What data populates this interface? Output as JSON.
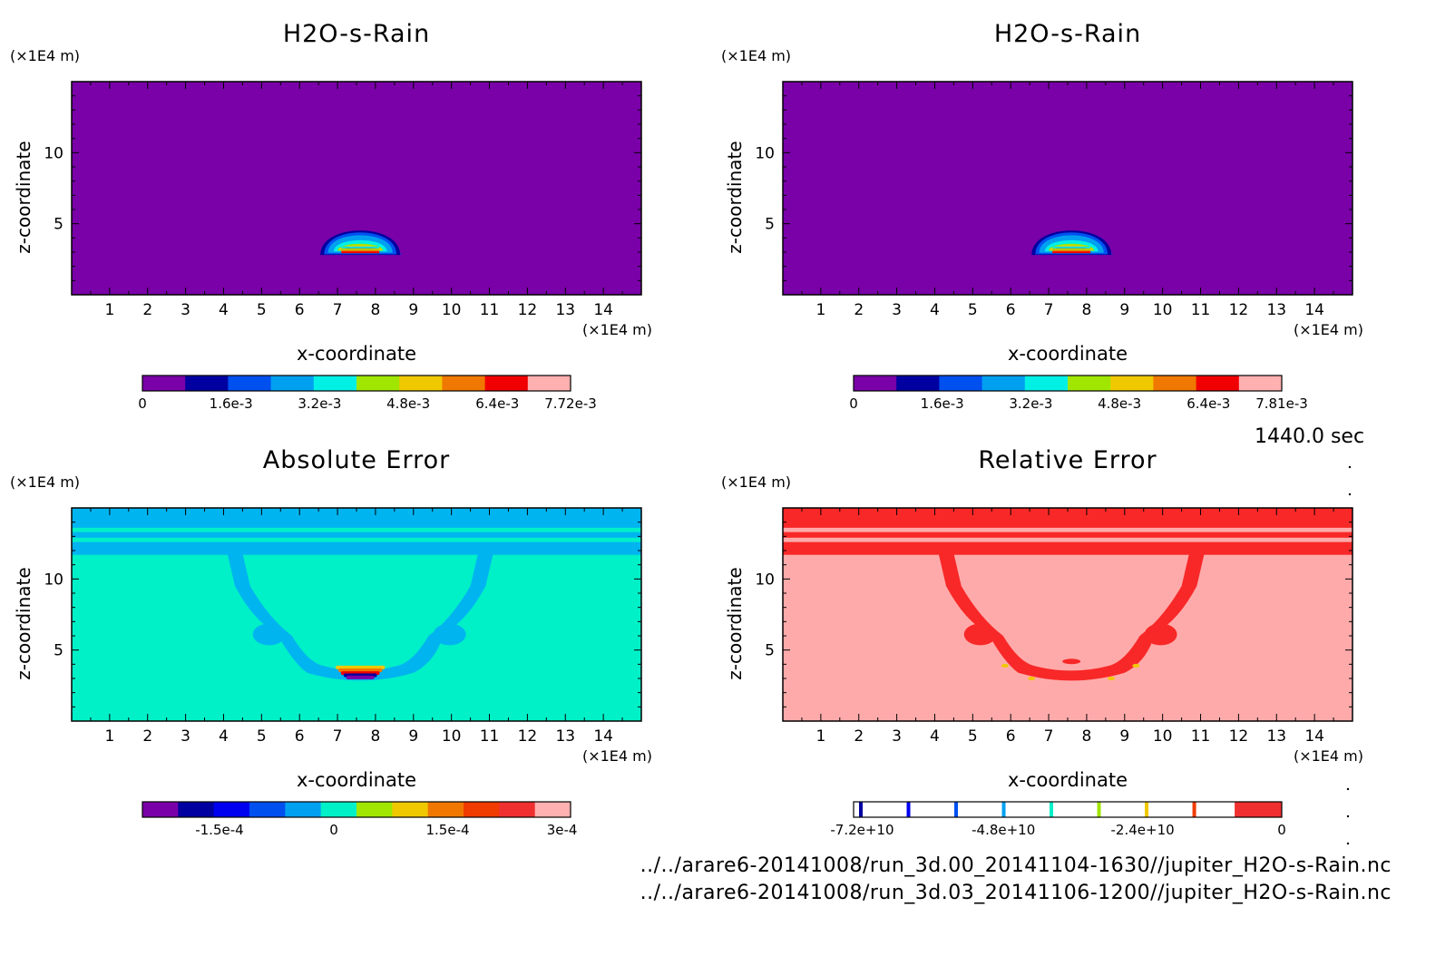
{
  "time_label": "1440.0 sec",
  "files": [
    "../../arare6-20141008/run_3d.00_20141104-1630//jupiter_H2O-s-Rain.nc",
    "../../arare6-20141008/run_3d.03_20141106-1200//jupiter_H2O-s-Rain.nc"
  ],
  "colors": {
    "purple": "#7a00a8",
    "navy": "#0000a0",
    "blue": "#0000f0",
    "mid_blue": "#0050f0",
    "sky": "#00a0f0",
    "cyan": "#00f0e6",
    "lime": "#a0e600",
    "yellow": "#f0c800",
    "orange": "#f07800",
    "red_orange": "#f03c00",
    "red": "#f00000",
    "bright_red": "#f03030",
    "pink": "#ffb0b0",
    "abs_bg": "#00f0c8",
    "abs_bands": "#00b4f0",
    "rel_bg": "#ffaaaa",
    "rel_bands": "#f82828"
  },
  "chart_data": [
    {
      "type": "heatmap",
      "panel": "top-left",
      "title": "H2O-s-Rain",
      "xlabel": "x-coordinate",
      "ylabel": "z-coordinate",
      "x_unit": "(×1E4 m)",
      "y_unit": "(×1E4 m)",
      "xlim": [
        0,
        15
      ],
      "ylim": [
        0,
        15
      ],
      "x_ticks": [
        1,
        2,
        3,
        4,
        5,
        6,
        7,
        8,
        9,
        10,
        11,
        12,
        13,
        14
      ],
      "y_ticks": [
        5,
        10
      ],
      "background": "#7a00a8",
      "feature": {
        "x_center": 7.6,
        "z_base": 2.8,
        "z_top": 5.1,
        "half_width": 1.2,
        "max_value": 0.00772
      },
      "colorbar": {
        "ticks": [
          "0",
          "1.6e-3",
          "3.2e-3",
          "4.8e-3",
          "6.4e-3",
          "7.72e-3"
        ],
        "colors": [
          "#7a00a8",
          "#0000a0",
          "#0050f0",
          "#00a0f0",
          "#00f0e6",
          "#a0e600",
          "#f0c800",
          "#f07800",
          "#f00000",
          "#ffb0b0"
        ]
      }
    },
    {
      "type": "heatmap",
      "panel": "top-right",
      "title": "H2O-s-Rain",
      "xlabel": "x-coordinate",
      "ylabel": "z-coordinate",
      "x_unit": "(×1E4 m)",
      "y_unit": "(×1E4 m)",
      "xlim": [
        0,
        15
      ],
      "ylim": [
        0,
        15
      ],
      "x_ticks": [
        1,
        2,
        3,
        4,
        5,
        6,
        7,
        8,
        9,
        10,
        11,
        12,
        13,
        14
      ],
      "y_ticks": [
        5,
        10
      ],
      "background": "#7a00a8",
      "feature": {
        "x_center": 7.6,
        "z_base": 2.8,
        "z_top": 5.1,
        "half_width": 1.2,
        "max_value": 0.00781
      },
      "colorbar": {
        "ticks": [
          "0",
          "1.6e-3",
          "3.2e-3",
          "4.8e-3",
          "6.4e-3",
          "7.81e-3"
        ],
        "colors": [
          "#7a00a8",
          "#0000a0",
          "#0050f0",
          "#00a0f0",
          "#00f0e6",
          "#a0e600",
          "#f0c800",
          "#f07800",
          "#f00000",
          "#ffb0b0"
        ]
      }
    },
    {
      "type": "heatmap",
      "panel": "bottom-left",
      "title": "Absolute Error",
      "xlabel": "x-coordinate",
      "ylabel": "z-coordinate",
      "x_unit": "(×1E4 m)",
      "y_unit": "(×1E4 m)",
      "xlim": [
        0,
        15
      ],
      "ylim": [
        0,
        15
      ],
      "x_ticks": [
        1,
        2,
        3,
        4,
        5,
        6,
        7,
        8,
        9,
        10,
        11,
        12,
        13,
        14
      ],
      "y_ticks": [
        5,
        10
      ],
      "background": "#00f0c8",
      "colorbar": {
        "ticks": [
          "-1.5e-4",
          "0",
          "1.5e-4",
          "3e-4"
        ],
        "colors": [
          "#7a00a8",
          "#0000a0",
          "#0000f0",
          "#0050f0",
          "#00a0f0",
          "#00f0c8",
          "#a0e600",
          "#f0c800",
          "#f07800",
          "#f03c00",
          "#f03030",
          "#ffb0b0"
        ]
      }
    },
    {
      "type": "heatmap",
      "panel": "bottom-right",
      "title": "Relative Error",
      "xlabel": "x-coordinate",
      "ylabel": "z-coordinate",
      "x_unit": "(×1E4 m)",
      "y_unit": "(×1E4 m)",
      "xlim": [
        0,
        15
      ],
      "ylim": [
        0,
        15
      ],
      "x_ticks": [
        1,
        2,
        3,
        4,
        5,
        6,
        7,
        8,
        9,
        10,
        11,
        12,
        13,
        14
      ],
      "y_ticks": [
        5,
        10
      ],
      "background": "#ffaaaa",
      "colorbar": {
        "ticks": [
          "-7.2e+10",
          "-4.8e+10",
          "-2.4e+10",
          "0"
        ],
        "line_colors": [
          "#0000a0",
          "#0000f0",
          "#0050f0",
          "#00a0f0",
          "#00f0c8",
          "#a0e600",
          "#f0c800",
          "#f03c00"
        ],
        "end_color": "#f03030"
      }
    }
  ]
}
